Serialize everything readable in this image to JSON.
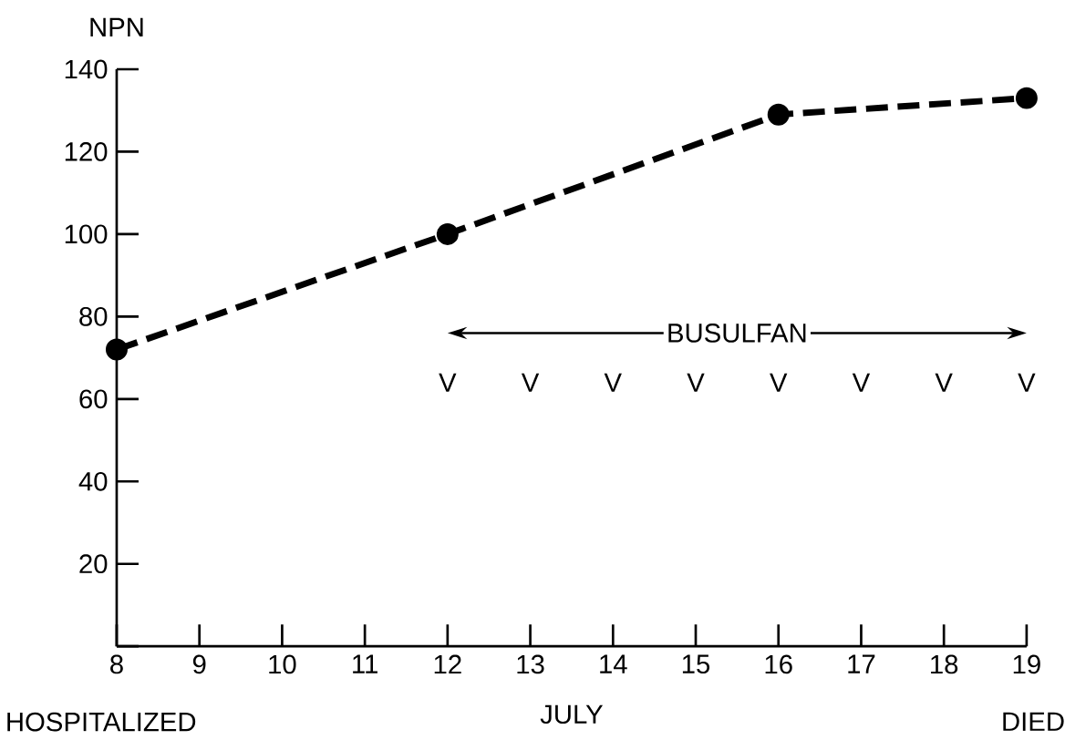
{
  "chart_data": {
    "type": "line",
    "ylabel": "NPN",
    "xlabel": "JULY",
    "x": [
      8,
      12,
      16,
      19
    ],
    "series": [
      {
        "color": "#000000",
        "values": [
          72,
          100,
          129,
          133
        ]
      }
    ],
    "xlim": [
      8,
      19
    ],
    "ylim": [
      0,
      140
    ],
    "xticks": [
      8,
      9,
      10,
      11,
      12,
      13,
      14,
      15,
      16,
      17,
      18,
      19
    ],
    "yticks": [
      {
        "value": 0,
        "label": null
      },
      20,
      40,
      60,
      80,
      100,
      120,
      140
    ],
    "marker": "circle",
    "line_style": "dashed",
    "grid": false,
    "annotations": [
      "BUSULFAN",
      "V",
      "V",
      "V",
      "V",
      "V",
      "V",
      "V",
      "V",
      "HOSPITALIZED",
      "DIED"
    ]
  }
}
